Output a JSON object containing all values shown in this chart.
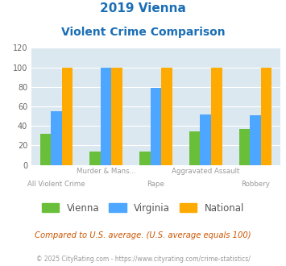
{
  "title_line1": "2019 Vienna",
  "title_line2": "Violent Crime Comparison",
  "categories": [
    "All Violent Crime",
    "Murder & Mans...",
    "Rape",
    "Aggravated Assault",
    "Robbery"
  ],
  "top_labels": [
    "",
    "Murder & Mans...",
    "",
    "Aggravated Assault",
    ""
  ],
  "bot_labels": [
    "All Violent Crime",
    "",
    "Rape",
    "",
    "Robbery"
  ],
  "vienna": [
    32,
    14,
    14,
    34,
    37
  ],
  "virginia": [
    55,
    100,
    79,
    52,
    51
  ],
  "national": [
    100,
    100,
    100,
    100,
    100
  ],
  "vienna_color": "#6abf3a",
  "virginia_color": "#4da6ff",
  "national_color": "#ffaa00",
  "background_color": "#dce8f0",
  "ylim": [
    0,
    120
  ],
  "yticks": [
    0,
    20,
    40,
    60,
    80,
    100,
    120
  ],
  "footnote": "Compared to U.S. average. (U.S. average equals 100)",
  "copyright": "© 2025 CityRating.com - https://www.cityrating.com/crime-statistics/",
  "title_color": "#1a6eb5",
  "footnote_color": "#cc5500",
  "copyright_color": "#999999",
  "legend_labels": [
    "Vienna",
    "Virginia",
    "National"
  ]
}
